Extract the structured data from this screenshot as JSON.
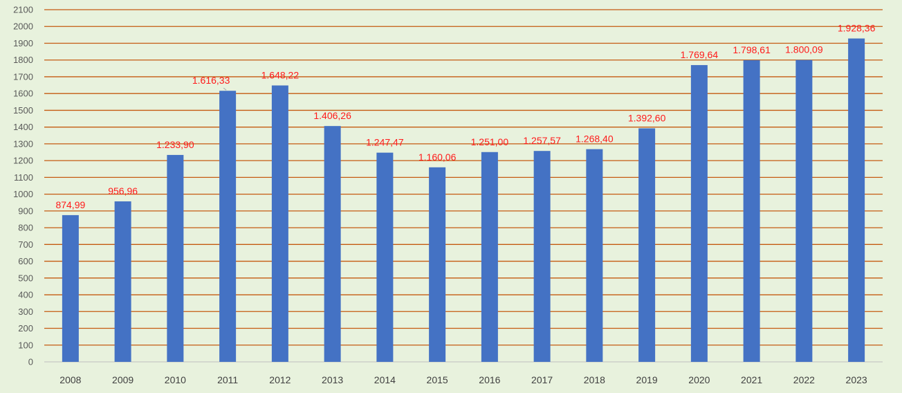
{
  "chart_data": {
    "type": "bar",
    "categories": [
      "2008",
      "2009",
      "2010",
      "2011",
      "2012",
      "2013",
      "2014",
      "2015",
      "2016",
      "2017",
      "2018",
      "2019",
      "2020",
      "2021",
      "2022",
      "2023"
    ],
    "values": [
      874.99,
      956.96,
      1233.9,
      1616.33,
      1648.22,
      1406.26,
      1247.47,
      1160.06,
      1251.0,
      1257.57,
      1268.4,
      1392.6,
      1769.64,
      1798.61,
      1800.09,
      1928.36
    ],
    "data_labels": [
      "874,99",
      "956,96",
      "1.233,90",
      "1.616,33",
      "1.648,22",
      "1.406,26",
      "1.247,47",
      "1.160,06",
      "1.251,00",
      "1.257,57",
      "1.268,40",
      "1.392,60",
      "1.769,64",
      "1.798,61",
      "1.800,09",
      "1.928,36"
    ],
    "ylim": [
      0,
      2100
    ],
    "yticks": [
      0,
      100,
      200,
      300,
      400,
      500,
      600,
      700,
      800,
      900,
      1000,
      1100,
      1200,
      1300,
      1400,
      1500,
      1600,
      1700,
      1800,
      1900,
      2000,
      2100
    ],
    "grid": true,
    "legend": "none",
    "colors": {
      "background": "#e8f2dd",
      "bar": "#4472c4",
      "gridline": "#c55a11",
      "data_label": "#ff1a1a",
      "leader_line": "#a6a6a6"
    }
  }
}
